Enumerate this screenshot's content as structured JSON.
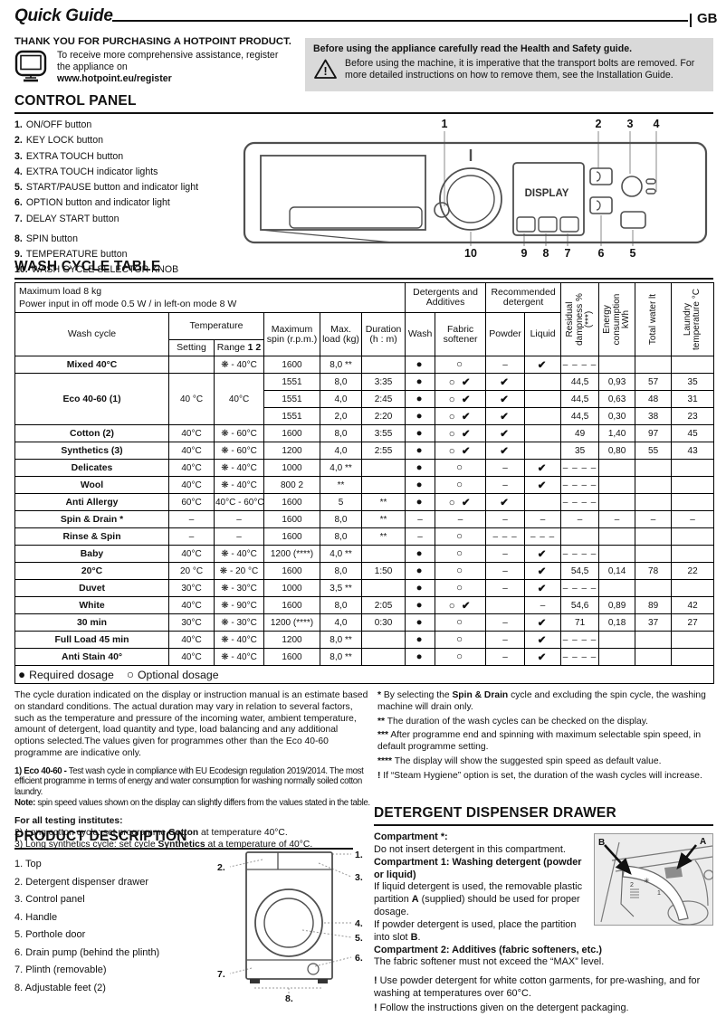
{
  "header": {
    "title": "Quick Guide",
    "region": "GB"
  },
  "intro": {
    "thanks_title": "THANK YOU FOR PURCHASING A HOTPOINT PRODUCT.",
    "register_text": "To receive more comprehensive assistance, register the appliance on",
    "register_url": "www.hotpoint.eu/register",
    "safety_title": "Before using the appliance carefully read the Health and Safety guide.",
    "safety_text": "Before using the machine, it is imperative that the transport bolts are removed. For more detailed instructions on how to remove them, see the Installation Guide."
  },
  "control_panel": {
    "heading": "CONTROL PANEL",
    "items": [
      {
        "num": "1.",
        "label": "ON/OFF button"
      },
      {
        "num": "2.",
        "label": "KEY LOCK button"
      },
      {
        "num": "3.",
        "label": "EXTRA TOUCH button"
      },
      {
        "num": "4.",
        "label": "EXTRA TOUCH indicator lights"
      },
      {
        "num": "5.",
        "label": "START/PAUSE button and indicator light"
      },
      {
        "num": "6.",
        "label": "OPTION button and indicator light"
      },
      {
        "num": "7.",
        "label": "DELAY START button"
      },
      {
        "num": "8.",
        "label": "SPIN button"
      },
      {
        "num": "9.",
        "label": "TEMPERATURE button"
      },
      {
        "num": "10.",
        "label": "WASH CYCLE SELECTOR KNOB"
      }
    ],
    "display_label": "DISPLAY",
    "callouts_top": [
      "1",
      "2",
      "3",
      "4"
    ],
    "callouts_bottom": [
      "10",
      "9",
      "8",
      "7",
      "6",
      "5"
    ]
  },
  "wash_table": {
    "heading": "WASH CYCLE TABLE",
    "info_line1": "Maximum load 8 kg",
    "info_line2": "Power input in off  mode 0.5 W / in left-on mode 8 W",
    "group_detergents": "Detergents and Additives",
    "group_recommended": "Recommended detergent",
    "col_wash_cycle": "Wash cycle",
    "col_temperature": "Temperature",
    "col_setting": "Setting",
    "col_range": "Range ",
    "col_range_bold": "1 2",
    "col_spin": "Maximum spin (r.p.m.)",
    "col_load": "Max. load (kg)",
    "col_duration": "Duration (h : m)",
    "col_wash": "Wash",
    "col_softener": "Fabric softener",
    "col_powder": "Powder",
    "col_liquid": "Liquid",
    "col_damp": "Residual dampness % (***)",
    "col_energy": "Energy consumption kWh",
    "col_water": "Total water lt",
    "col_temp": "Laundry temperature °C",
    "rows": [
      [
        "Mixed 40°C",
        "",
        "❋ - 40°C",
        "1600",
        "8,0 **",
        "",
        "●",
        "○",
        "–",
        "✔",
        "– – – –",
        "",
        "",
        ""
      ],
      [
        {
          "t": "Eco 40-60 (1)",
          "rs": 3
        },
        {
          "t": "40 °C",
          "rs": 3
        },
        {
          "t": "40°C",
          "rs": 3
        },
        "1551",
        "8,0",
        "3:35",
        "●",
        "○ ✔",
        "✔",
        "",
        "44,5",
        "0,93",
        "57",
        "35"
      ],
      [
        "1551",
        "4,0",
        "2:45",
        "●",
        "○ ✔",
        "✔",
        "",
        "44,5",
        "0,63",
        "48",
        "31"
      ],
      [
        "1551",
        "2,0",
        "2:20",
        "●",
        "○ ✔",
        "✔",
        "",
        "44,5",
        "0,30",
        "38",
        "23"
      ],
      [
        "Cotton (2)",
        "40°C",
        "❋ - 60°C",
        "1600",
        "8,0",
        "3:55",
        "●",
        "○ ✔",
        "✔",
        "",
        "49",
        "1,40",
        "97",
        "45"
      ],
      [
        "Synthetics (3)",
        "40°C",
        "❋ - 60°C",
        "1200",
        "4,0",
        "2:55",
        "●",
        "○ ✔",
        "✔",
        "",
        "35",
        "0,80",
        "55",
        "43"
      ],
      [
        "Delicates",
        "40°C",
        "❋ - 40°C",
        "1000",
        "4,0 **",
        "",
        "●",
        "○",
        "–",
        "✔",
        "– – – –",
        "",
        "",
        ""
      ],
      [
        "Wool",
        "40°C",
        "❋ - 40°C",
        "800 2",
        "**",
        "",
        "●",
        "○",
        "–",
        "✔",
        "– – – –",
        "",
        "",
        ""
      ],
      [
        "Anti Allergy",
        "60°C",
        "40°C - 60°C",
        "1600",
        "5",
        "**",
        "●",
        "○ ✔",
        "✔",
        "",
        "– – – –",
        "",
        "",
        ""
      ],
      [
        "Spin & Drain *",
        "–",
        "–",
        "1600",
        "8,0",
        "**",
        "–",
        "–",
        "–",
        "–",
        "–",
        "–",
        "–",
        "–"
      ],
      [
        "Rinse & Spin",
        "–",
        "–",
        "1600",
        "8,0",
        "**",
        "–",
        "○",
        "– – –",
        "– – –",
        "",
        "",
        "",
        ""
      ],
      [
        "Baby",
        "40°C",
        "❋ - 40°C",
        "1200 (****)",
        "4,0 **",
        "",
        "●",
        "○",
        "–",
        "✔",
        "– – – –",
        "",
        "",
        ""
      ],
      [
        "20°C",
        "20 °C",
        "❋ - 20 °C",
        "1600",
        "8,0",
        "1:50",
        "●",
        "○",
        "–",
        "✔",
        "54,5",
        "0,14",
        "78",
        "22"
      ],
      [
        "Duvet",
        "30°C",
        "❋ - 30°C",
        "1000",
        "3,5 **",
        "",
        "●",
        "○",
        "–",
        "✔",
        "– – – –",
        "",
        "",
        ""
      ],
      [
        "White",
        "40°C",
        "❋ - 90°C",
        "1600",
        "8,0",
        "2:05",
        "●",
        "○ ✔",
        "",
        "–",
        "54,6",
        "0,89",
        "89",
        "42"
      ],
      [
        "30 min",
        "30°C",
        "❋ - 30°C",
        "1200 (****)",
        "4,0",
        "0:30",
        "●",
        "○",
        "–",
        "✔",
        "71",
        "0,18",
        "37",
        "27"
      ],
      [
        "Full Load 45 min",
        "40°C",
        "❋ - 40°C",
        "1200",
        "8,0 **",
        "",
        "●",
        "○",
        "–",
        "✔",
        "– – – –",
        "",
        "",
        ""
      ],
      [
        "Anti Stain 40°",
        "40°C",
        "❋ - 40°C",
        "1600",
        "8,0 **",
        "",
        "●",
        "○",
        "–",
        "✔",
        "– – – –",
        "",
        "",
        ""
      ]
    ],
    "legend": {
      "required_symbol": "●",
      "required": "Required dosage",
      "optional_symbol": "○",
      "optional": "Optional dosage"
    }
  },
  "footnotes": {
    "left_p1": "The cycle duration indicated on the display or instruction manual is an estimate based on standard conditions. The actual duration may vary in relation to several factors, such as the temperature and pressure of the incoming water, ambient temperature, amount of detergent, load quantity and type, load balancing and any additional options selected.The values given for programmes other than the Eco 40-60 programme are indicative only.",
    "eco_bold": "1) Eco 40-60 -",
    "eco_text": " Test wash cycle in compliance with EU Ecodesign regulation 2019/2014. The most efficient programme in terms of energy and water consumption for washing normally soiled cotton laundry.",
    "note_bold": "Note:",
    "note_text": " spin speed values shown on the display can slightly differs from the values stated in the table.",
    "testing_title": "For all testing institutes:",
    "t2_pre": "2)  Long cotton cycle: set programme ",
    "t2_bold": "Cotton",
    "t2_post": " at temperature 40°C.",
    "t3_pre": "3)  Long synthetics cycle: set cycle ",
    "t3_bold": "Synthetics",
    "t3_post": " at a temperature of 40°C.",
    "f1_marker": "*",
    "f1_pre": " By selecting the ",
    "f1_bold": "Spin & Drain",
    "f1_post": " cycle and excluding the spin cycle, the washing machine will drain only.",
    "f2_marker": "**",
    "f2_text": " The duration of the wash cycles can be checked on the display.",
    "f3_marker": "***",
    "f3_text": " After programme end and spinning with maximum selectable spin speed, in default programme setting.",
    "f4_marker": "****",
    "f4_text": " The display will show the suggested spin speed as default value.",
    "f5_marker": "!",
    "f5_text": " If “Steam Hygiene” option is set, the duration of the wash cycles will increase."
  },
  "product_description": {
    "heading": "PRODUCT DESCRIPTION",
    "items": [
      {
        "num": "1.",
        "label": "Top"
      },
      {
        "num": "2.",
        "label": "Detergent dispenser drawer"
      },
      {
        "num": "3.",
        "label": "Control panel"
      },
      {
        "num": "4.",
        "label": "Handle"
      },
      {
        "num": "5.",
        "label": "Porthole door"
      },
      {
        "num": "6.",
        "label": "Drain pump (behind the plinth)"
      },
      {
        "num": "7.",
        "label": "Plinth (removable)"
      },
      {
        "num": "8.",
        "label": "Adjustable feet (2)"
      }
    ]
  },
  "dispenser": {
    "heading": "DETERGENT DISPENSER DRAWER",
    "c0_title": "Compartment *:",
    "c0_text": "Do not insert detergent in this compartment.",
    "c1_title": "Compartment 1: Washing detergent (powder or liquid)",
    "c1_liquid_pre": "If liquid detergent is used, the removable plastic partition ",
    "c1_liquid_bold": "A",
    "c1_liquid_post": " (supplied) should be used for proper dosage.",
    "c1_powder_pre": "If powder detergent is used, place the partition into slot ",
    "c1_powder_bold": "B",
    "c1_powder_post": ".",
    "c2_title": "Compartment 2: Additives (fabric softeners, etc.)",
    "c2_text": "The fabric softener must not exceed the “MAX” level.",
    "note1_marker": "!",
    "note1_text": " Use powder detergent for white cotton garments, for pre-washing, and for washing at temperatures over 60°C.",
    "note2_marker": "!",
    "note2_text": " Follow the instructions given on the detergent packaging.",
    "label_a": "A",
    "label_b": "B"
  }
}
